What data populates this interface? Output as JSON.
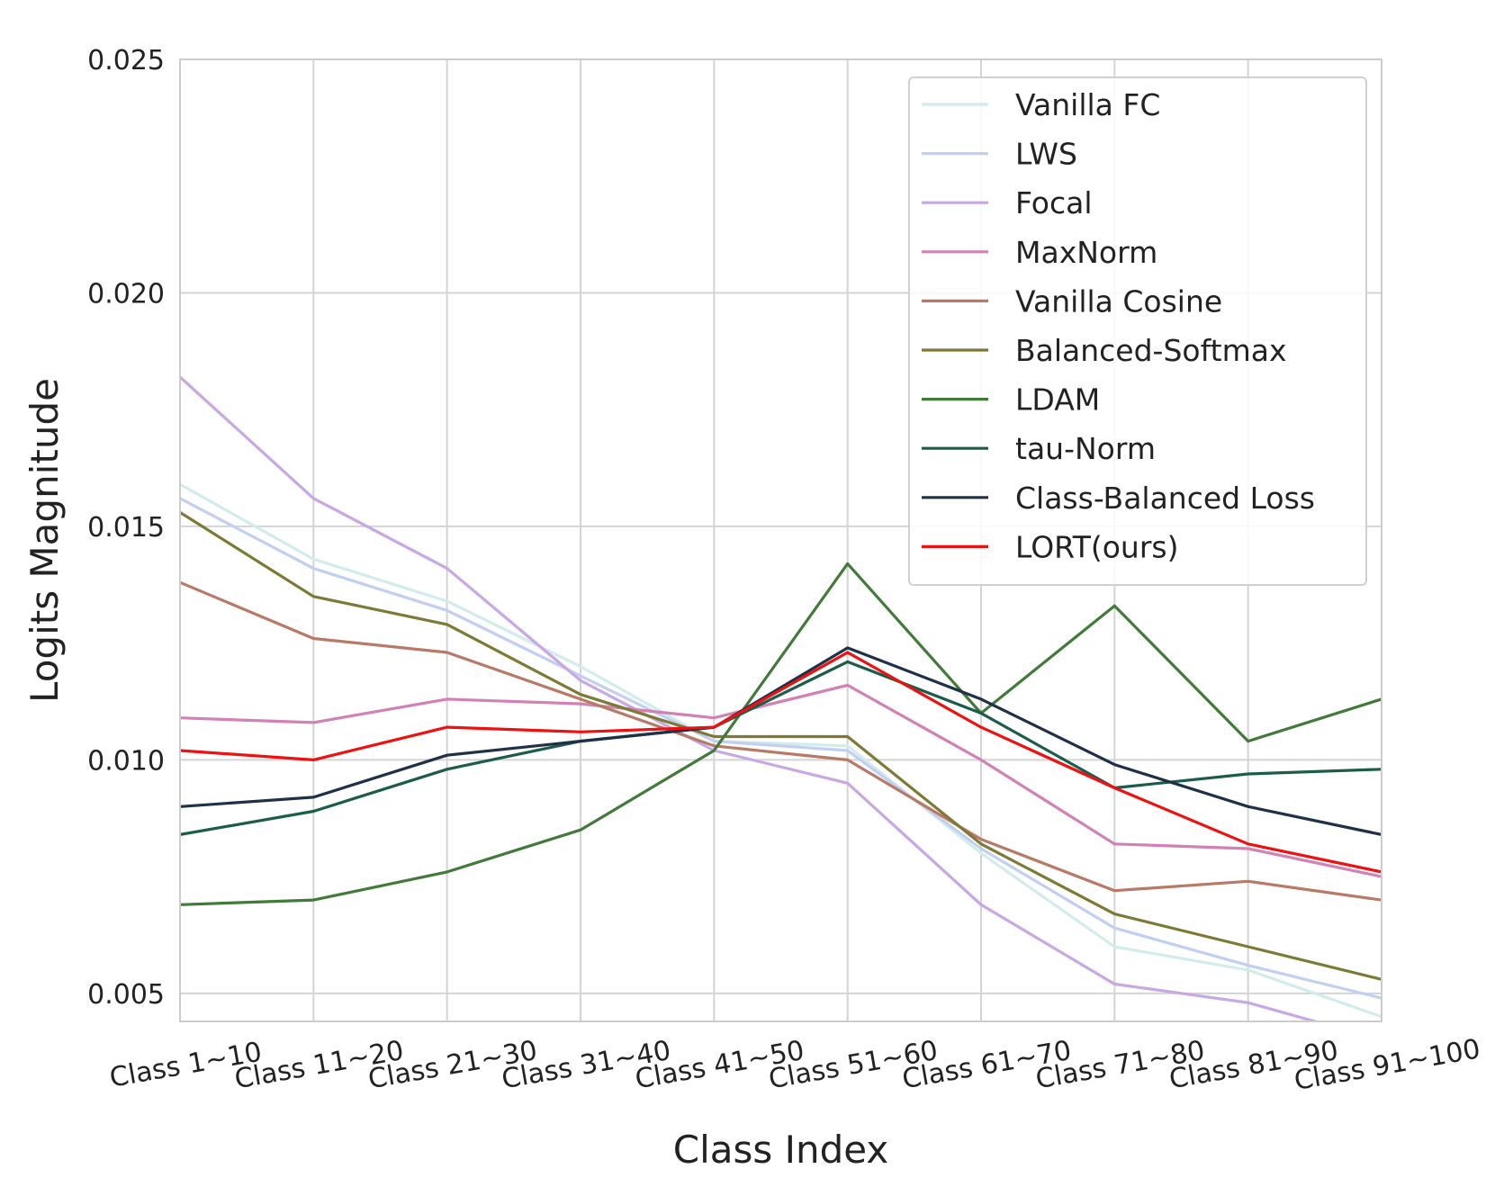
{
  "chart_data": {
    "type": "line",
    "xlabel": "Class Index",
    "ylabel": "Logits Magnitude",
    "ylim": [
      0.0044,
      0.025
    ],
    "yticks": [
      "0.005",
      "0.010",
      "0.015",
      "0.020",
      "0.025"
    ],
    "ytick_values": [
      0.005,
      0.01,
      0.015,
      0.02,
      0.025
    ],
    "grid": true,
    "legend_position": "top-right",
    "categories": [
      "Class 1~10",
      "Class 11~20",
      "Class 21~30",
      "Class 31~40",
      "Class 41~50",
      "Class 51~60",
      "Class 61~70",
      "Class 71~80",
      "Class 81~90",
      "Class 91~100"
    ],
    "series": [
      {
        "name": "Vanilla FC",
        "color": "#d2ecec",
        "values": [
          0.0159,
          0.0143,
          0.0134,
          0.012,
          0.0104,
          0.0103,
          0.008,
          0.006,
          0.0055,
          0.0045
        ]
      },
      {
        "name": "LWS",
        "color": "#c3cff0",
        "values": [
          0.0156,
          0.0141,
          0.0132,
          0.0118,
          0.0104,
          0.0102,
          0.0081,
          0.0064,
          0.0056,
          0.0049
        ]
      },
      {
        "name": "Focal",
        "color": "#c8a8e4",
        "values": [
          0.0182,
          0.0156,
          0.0141,
          0.0117,
          0.0102,
          0.0095,
          0.0069,
          0.0052,
          0.0048,
          0.004
        ]
      },
      {
        "name": "MaxNorm",
        "color": "#d181b4",
        "values": [
          0.0109,
          0.0108,
          0.0113,
          0.0112,
          0.0109,
          0.0116,
          0.01,
          0.0082,
          0.0081,
          0.0075
        ]
      },
      {
        "name": "Vanilla Cosine",
        "color": "#b87a66",
        "values": [
          0.0138,
          0.0126,
          0.0123,
          0.0113,
          0.0103,
          0.01,
          0.0083,
          0.0072,
          0.0074,
          0.007
        ]
      },
      {
        "name": "Balanced-Softmax",
        "color": "#7d7a36",
        "values": [
          0.0153,
          0.0135,
          0.0129,
          0.0114,
          0.0105,
          0.0105,
          0.0082,
          0.0067,
          0.006,
          0.0053
        ]
      },
      {
        "name": "LDAM",
        "color": "#417a39",
        "values": [
          0.0069,
          0.007,
          0.0076,
          0.0085,
          0.0102,
          0.0142,
          0.011,
          0.0133,
          0.0104,
          0.0113
        ]
      },
      {
        "name": "tau-Norm",
        "color": "#1c5c4a",
        "values": [
          0.0084,
          0.0089,
          0.0098,
          0.0104,
          0.0107,
          0.0121,
          0.011,
          0.0094,
          0.0097,
          0.0098
        ]
      },
      {
        "name": "Class-Balanced Loss",
        "color": "#1f3148",
        "values": [
          0.009,
          0.0092,
          0.0101,
          0.0104,
          0.0107,
          0.0124,
          0.0113,
          0.0099,
          0.009,
          0.0084
        ]
      },
      {
        "name": "LORT(ours)",
        "color": "#ee1111",
        "values": [
          0.0102,
          0.01,
          0.0107,
          0.0106,
          0.0107,
          0.0123,
          0.0107,
          0.0094,
          0.0082,
          0.0076
        ]
      }
    ]
  }
}
